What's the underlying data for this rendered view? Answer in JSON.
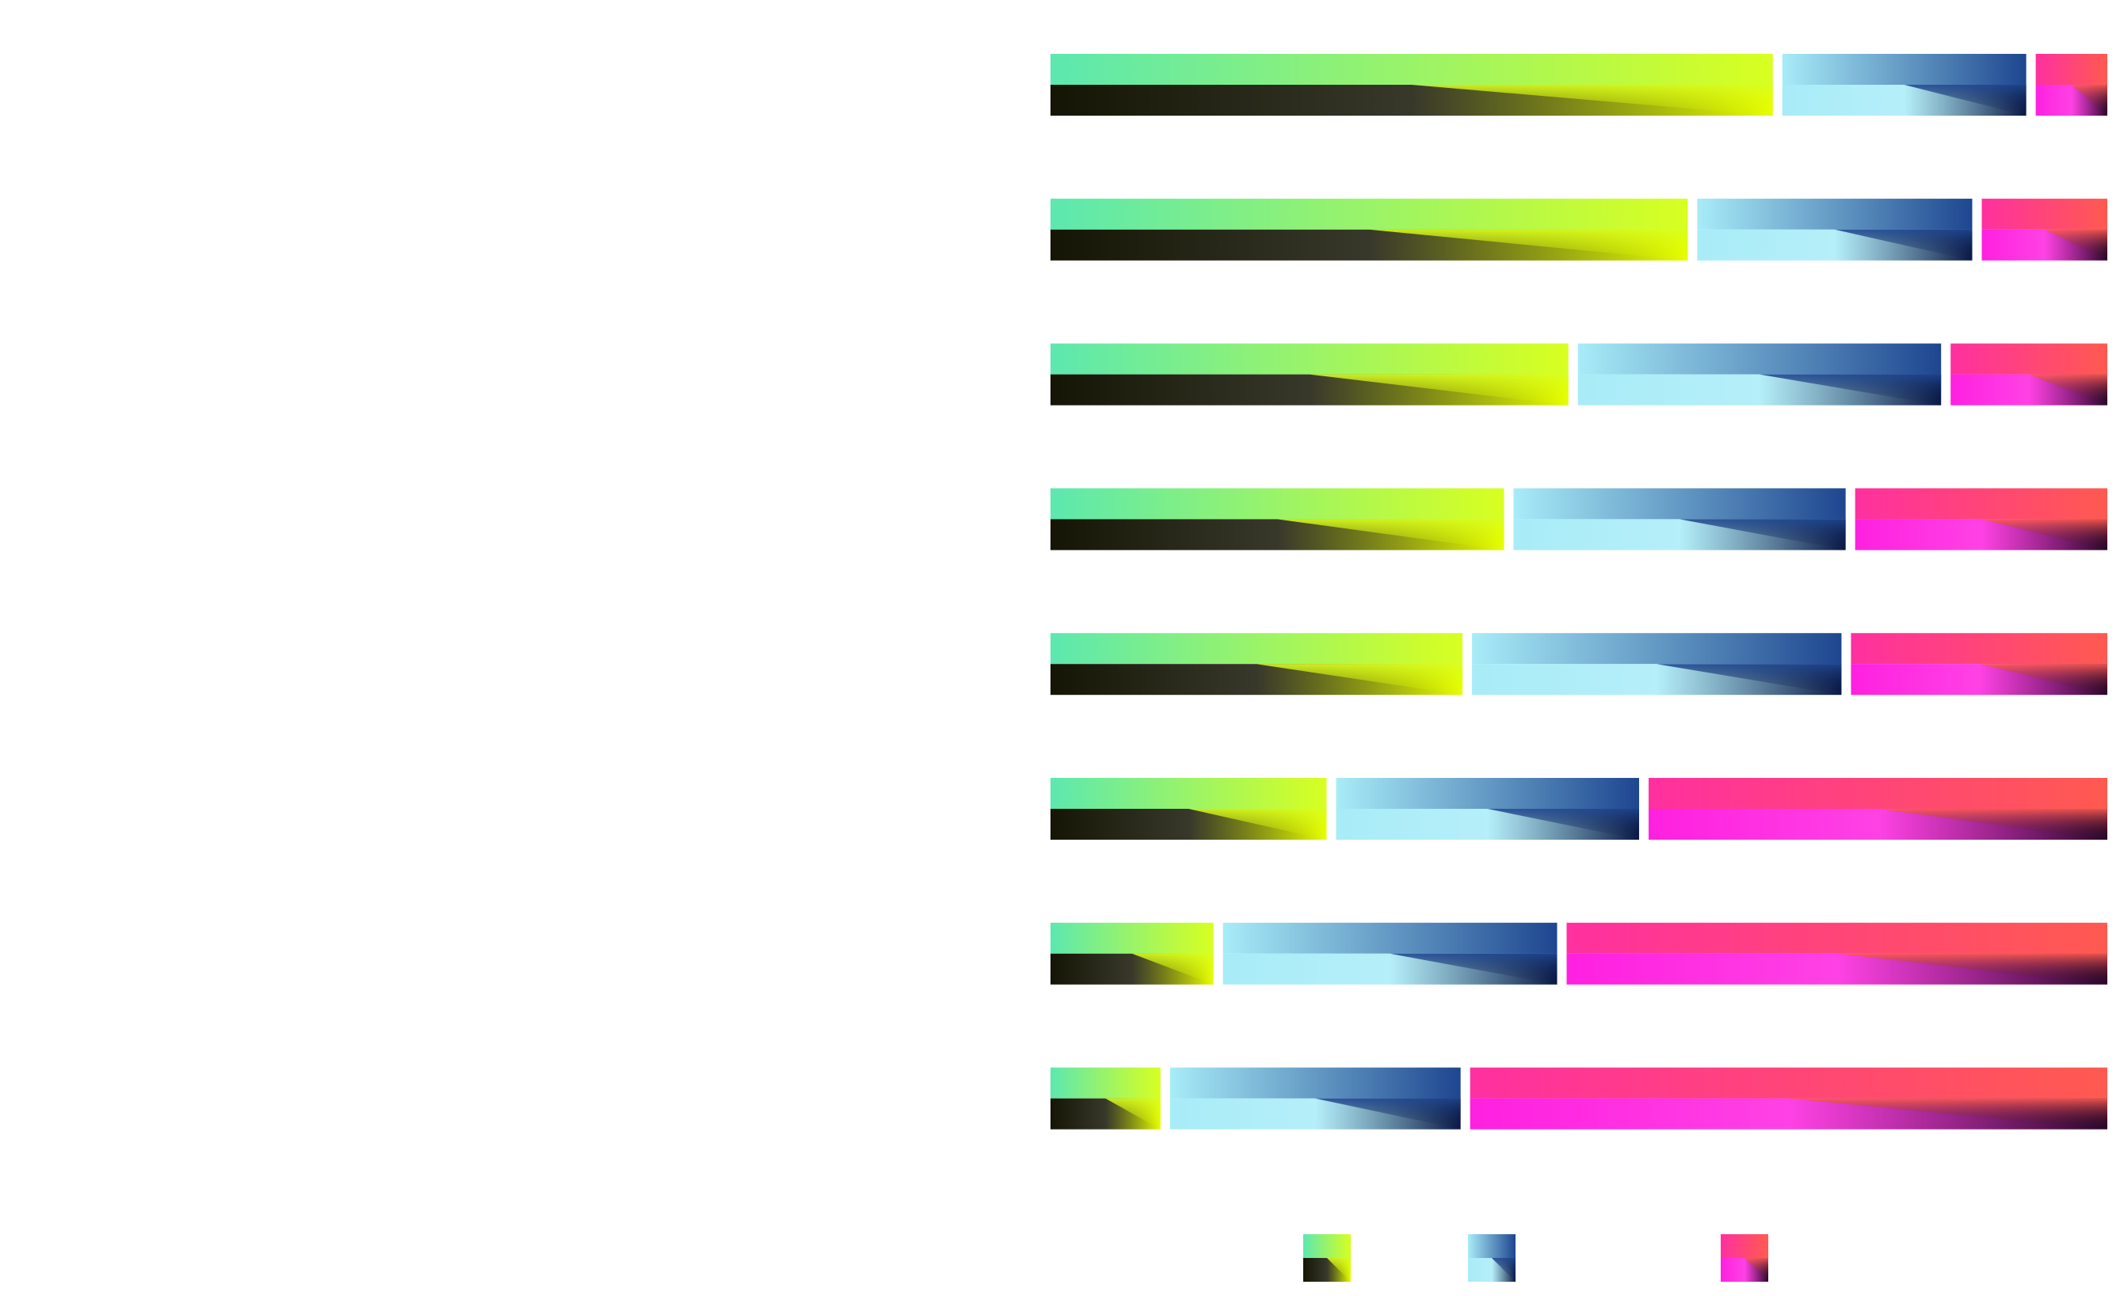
{
  "chart_data": {
    "type": "bar",
    "orientation": "horizontal",
    "stacked": true,
    "normalized": true,
    "title": "",
    "xlabel": "",
    "ylabel": "",
    "categories": [
      "",
      "",
      "",
      "",
      "",
      "",
      "",
      ""
    ],
    "xlim": [
      0,
      1
    ],
    "grid": false,
    "legend": {
      "placement": "bottom",
      "labels_visible": false
    },
    "series": [
      {
        "color_top_left": "#5ce8b0",
        "color_top_right": "#d8ff20",
        "color_bottom_left": "#151505",
        "color_bottom_right": "#e6ff00",
        "values": [
          0.696,
          0.614,
          0.499,
          0.437,
          0.397,
          0.266,
          0.157,
          0.106
        ]
      },
      {
        "color_top_left": "#a8ecf8",
        "color_top_right": "#1e4690",
        "color_bottom_left": "#a8ecf8",
        "color_bottom_right": "#0a1845",
        "values": [
          0.235,
          0.265,
          0.35,
          0.32,
          0.356,
          0.292,
          0.322,
          0.28
        ]
      },
      {
        "color_top_left": "#ff30a0",
        "color_top_right": "#ff5a50",
        "color_bottom_left": "#ff20e0",
        "color_bottom_right": "#2a0828",
        "values": [
          0.069,
          0.121,
          0.151,
          0.243,
          0.247,
          0.442,
          0.521,
          0.614
        ]
      }
    ]
  }
}
